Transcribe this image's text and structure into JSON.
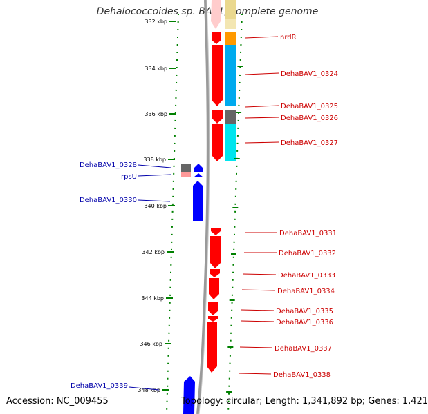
{
  "title": "Dehalococcoides sp. BAV1, complete genome",
  "footer": {
    "accession": "Accession: NC_009455",
    "topology": "Topology: circular; Length: 1,341,892 bp; Genes: 1,421"
  },
  "scale_ticks": [
    {
      "label": "332 kbp",
      "kbp": 332
    },
    {
      "label": "334 kbp",
      "kbp": 334
    },
    {
      "label": "336 kbp",
      "kbp": 336
    },
    {
      "label": "338 kbp",
      "kbp": 338
    },
    {
      "label": "340 kbp",
      "kbp": 340
    },
    {
      "label": "342 kbp",
      "kbp": 342
    },
    {
      "label": "344 kbp",
      "kbp": 344
    },
    {
      "label": "346 kbp",
      "kbp": 346
    },
    {
      "label": "348 kbp",
      "kbp": 348
    }
  ],
  "colors": {
    "reverse_strand_gene": "#ff0000",
    "forward_strand_gene": "#0000ff",
    "reverse_label": "#cc0000",
    "forward_label": "#0000aa",
    "backbone": "#808080",
    "tick_marks": "#008000",
    "cog_orange": "#ff9900",
    "cog_blue": "#00aaee",
    "cog_cyan": "#00e5ee",
    "cog_gray": "#666666",
    "cog_pink": "#ff9999",
    "cog_beige": "#ead88e"
  },
  "reverse_genes": [
    {
      "label": "nrdR"
    },
    {
      "label": "DehaBAV1_0324"
    },
    {
      "label": "DehaBAV1_0325"
    },
    {
      "label": "DehaBAV1_0326"
    },
    {
      "label": "DehaBAV1_0327"
    },
    {
      "label": "DehaBAV1_0331"
    },
    {
      "label": "DehaBAV1_0332"
    },
    {
      "label": "DehaBAV1_0333"
    },
    {
      "label": "DehaBAV1_0334"
    },
    {
      "label": "DehaBAV1_0335"
    },
    {
      "label": "DehaBAV1_0336"
    },
    {
      "label": "DehaBAV1_0337"
    },
    {
      "label": "DehaBAV1_0338"
    }
  ],
  "forward_genes": [
    {
      "label": "DehaBAV1_0328"
    },
    {
      "label": "rpsU"
    },
    {
      "label": "DehaBAV1_0330"
    },
    {
      "label": "DehaBAV1_0339"
    }
  ]
}
